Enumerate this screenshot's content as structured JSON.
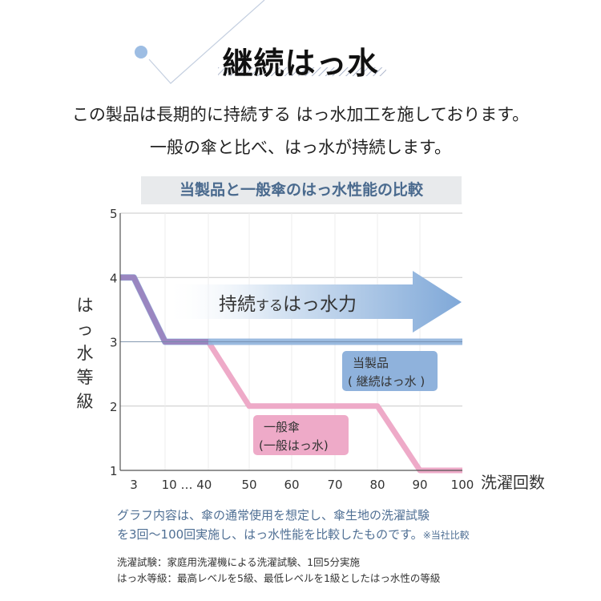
{
  "header": {
    "title": "継続はっ水",
    "lead_line1": "この製品は長期的に持続する はっ水加工を施しております。",
    "lead_line2": "一般の傘と比べ、はっ水が持続します。"
  },
  "chart_data": {
    "type": "line",
    "title": "当製品と一般傘のはっ水性能の比較",
    "xlabel": "洗濯回数",
    "ylabel": "はっ水等級",
    "x_tick_labels": [
      "3",
      "10 … 40",
      "50",
      "60",
      "70",
      "80",
      "90",
      "100"
    ],
    "y_ticks": [
      "1",
      "2",
      "3",
      "4",
      "5"
    ],
    "ylim": [
      1,
      5
    ],
    "grid": true,
    "arrow_label_main": "持続",
    "arrow_label_small": "する",
    "arrow_label_tail": "はっ水力",
    "series": [
      {
        "name": "当製品",
        "label_line2": "( 継続はっ水 )",
        "color": "#8fb2dc",
        "points": [
          [
            0,
            4
          ],
          [
            3,
            4
          ],
          [
            10,
            3
          ],
          [
            100,
            3
          ]
        ]
      },
      {
        "name": "一般傘",
        "label_line2": "(一般はっ水)",
        "color": "#eeaac8",
        "points": [
          [
            0,
            4
          ],
          [
            3,
            4
          ],
          [
            10,
            3
          ],
          [
            40,
            3
          ],
          [
            50,
            2
          ],
          [
            80,
            2
          ],
          [
            90,
            1
          ],
          [
            100,
            1
          ]
        ]
      }
    ],
    "overlap_color": "#9a86c0"
  },
  "notes": {
    "blue_line1": "グラフ内容は、傘の通常使用を想定し、傘生地の洗濯試験",
    "blue_line2": "を3回〜100回実施し、はっ水性能を比較したものです。",
    "blue_suffix": "※当社比較",
    "small_line1": "洗濯試験：家庭用洗濯機による洗濯試験、1回5分実施",
    "small_line2": "はっ水等級：最高レベルを5級、最低レベルを1級としたはっ水性の等級"
  }
}
